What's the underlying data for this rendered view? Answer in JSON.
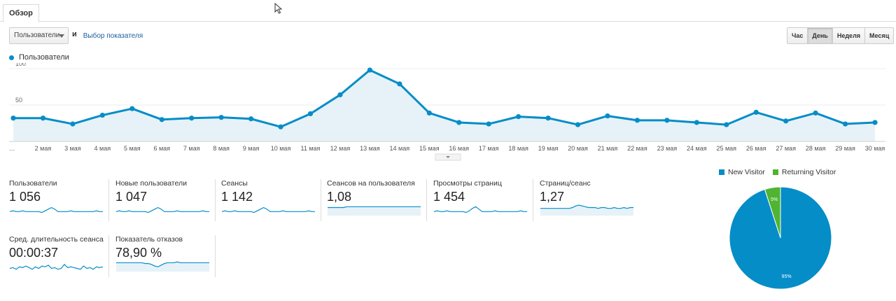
{
  "tab": {
    "label": "Обзор"
  },
  "controls": {
    "metric_select": "Пользователи",
    "and_label": "и",
    "metric_link": "Выбор показателя"
  },
  "period_buttons": [
    {
      "label": "Час",
      "active": false
    },
    {
      "label": "День",
      "active": true
    },
    {
      "label": "Неделя",
      "active": false
    },
    {
      "label": "Месяц",
      "active": false
    }
  ],
  "colors": {
    "accent": "#058dc7",
    "fill": "#e6f2f8",
    "returning": "#50b432",
    "grid": "#eeeeee"
  },
  "chart_data": [
    {
      "type": "area",
      "series": [
        {
          "name": "Пользователи",
          "values": [
            32,
            32,
            24,
            36,
            45,
            30,
            32,
            33,
            31,
            20,
            38,
            64,
            98,
            79,
            39,
            26,
            24,
            34,
            32,
            23,
            35,
            29,
            29,
            26,
            23,
            40,
            28,
            39,
            24,
            26
          ]
        }
      ],
      "x": [
        "…",
        "2 мая",
        "3 мая",
        "4 мая",
        "5 мая",
        "6 мая",
        "7 мая",
        "8 мая",
        "9 мая",
        "10 мая",
        "11 мая",
        "12 мая",
        "13 мая",
        "14 мая",
        "15 мая",
        "16 мая",
        "17 мая",
        "18 мая",
        "19 мая",
        "20 мая",
        "21 мая",
        "22 мая",
        "23 мая",
        "24 мая",
        "25 мая",
        "26 мая",
        "27 мая",
        "28 мая",
        "29 мая",
        "30 мая"
      ],
      "yticks": [
        50,
        100
      ],
      "ylim": [
        0,
        100
      ]
    },
    {
      "type": "pie",
      "categories": [
        "New Visitor",
        "Returning Visitor"
      ],
      "values": [
        95,
        5
      ],
      "labels": [
        "95%",
        "5%"
      ]
    }
  ],
  "tiles": [
    {
      "label": "Пользователи",
      "value": "1 056",
      "spark": [
        4,
        5,
        4,
        4,
        5,
        4,
        4,
        4,
        4,
        4,
        3,
        5,
        7,
        9,
        7,
        4,
        4,
        4,
        4,
        5,
        4,
        4,
        4,
        4,
        4,
        4,
        4,
        5,
        4,
        4
      ],
      "fill": false
    },
    {
      "label": "Новые пользователи",
      "value": "1 047",
      "spark": [
        4,
        5,
        4,
        4,
        5,
        4,
        4,
        4,
        4,
        4,
        3,
        5,
        7,
        9,
        7,
        4,
        4,
        4,
        4,
        5,
        4,
        4,
        4,
        4,
        4,
        4,
        4,
        5,
        4,
        4
      ],
      "fill": false
    },
    {
      "label": "Сеансы",
      "value": "1 142",
      "spark": [
        4,
        5,
        4,
        4,
        5,
        4,
        4,
        4,
        4,
        4,
        3,
        5,
        7,
        9,
        7,
        4,
        4,
        4,
        4,
        5,
        4,
        4,
        4,
        4,
        4,
        4,
        4,
        5,
        4,
        4
      ],
      "fill": false
    },
    {
      "label": "Сеансов на пользователя",
      "value": "1,08",
      "spark": [
        9,
        9,
        9,
        9,
        9,
        9,
        10,
        10,
        10,
        10,
        10,
        10,
        10,
        10,
        10,
        10,
        10,
        10,
        10,
        10,
        10,
        10,
        10,
        10,
        10,
        10,
        10,
        10,
        10,
        10
      ],
      "fill": true
    },
    {
      "label": "Просмотры страниц",
      "value": "1 454",
      "spark": [
        4,
        5,
        4,
        4,
        5,
        4,
        4,
        4,
        4,
        4,
        3,
        5,
        8,
        10,
        7,
        4,
        4,
        4,
        4,
        5,
        4,
        4,
        4,
        4,
        4,
        4,
        4,
        5,
        4,
        4
      ],
      "fill": false
    },
    {
      "label": "Страниц/сеанс",
      "value": "1,27",
      "spark": [
        8,
        8,
        8,
        8,
        8,
        8,
        8,
        8,
        8,
        8,
        9,
        11,
        12,
        11,
        10,
        9,
        9,
        9,
        8,
        9,
        9,
        8,
        8,
        9,
        8,
        8,
        9,
        8,
        9,
        9
      ],
      "fill": true
    },
    {
      "label": "Сред. длительность сеанса",
      "value": "00:00:37",
      "spark": [
        3,
        4,
        2,
        5,
        4,
        6,
        4,
        2,
        5,
        3,
        6,
        5,
        7,
        3,
        4,
        2,
        3,
        8,
        4,
        5,
        4,
        3,
        2,
        6,
        3,
        4,
        2,
        5,
        4,
        5
      ],
      "fill": false
    },
    {
      "label": "Показатель отказов",
      "value": "78,90 %",
      "spark": [
        10,
        10,
        10,
        10,
        10,
        10,
        10,
        10,
        10,
        9,
        9,
        8,
        6,
        5,
        7,
        9,
        10,
        10,
        10,
        11,
        10,
        10,
        10,
        10,
        10,
        10,
        10,
        10,
        10,
        10
      ],
      "fill": true
    }
  ],
  "pie_legend": [
    "New Visitor",
    "Returning Visitor"
  ]
}
